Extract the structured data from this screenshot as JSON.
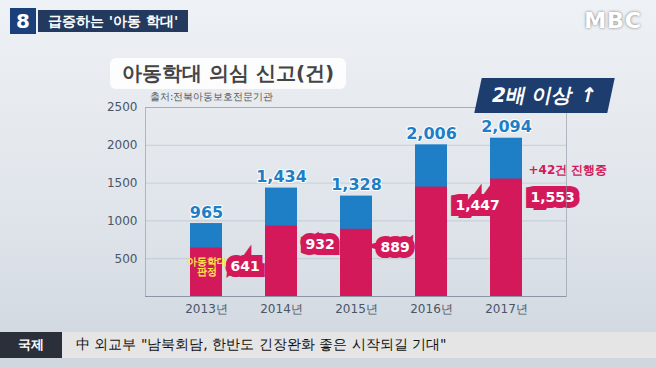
{
  "broadcast": {
    "logo_number": "8",
    "headline": "급증하는 '아동 학대'",
    "channel": "MBC",
    "ticker_section": "국제",
    "ticker_text": "中 외교부 \"남북회담, 한반도 긴장완화 좋은 시작되길 기대\""
  },
  "chart_data": {
    "type": "bar",
    "title": "아동학대 의심 신고(건)",
    "subtitle": "출처:전북아동보호전문기관",
    "categories": [
      "2013년",
      "2014년",
      "2015년",
      "2016년",
      "2017년"
    ],
    "series": [
      {
        "color": "#1e7fc6",
        "values": [
          965,
          1434,
          1328,
          2006,
          2094
        ],
        "value_labels": [
          "965",
          "1,434",
          "1,328",
          "2,006",
          "2,094"
        ]
      },
      {
        "name": "아동학대 판정",
        "color": "#d4195a",
        "values": [
          641,
          932,
          889,
          1447,
          1553
        ],
        "value_labels": [
          "641",
          "932",
          "889",
          "1,447",
          "1,553"
        ]
      }
    ],
    "ylim": [
      0,
      2500
    ],
    "yticks": [
      500,
      1000,
      1500,
      2000,
      2500
    ],
    "grid": true,
    "data_labels": true,
    "annotations": [
      "2배 이상 ↑",
      "+42건 진행중"
    ]
  }
}
